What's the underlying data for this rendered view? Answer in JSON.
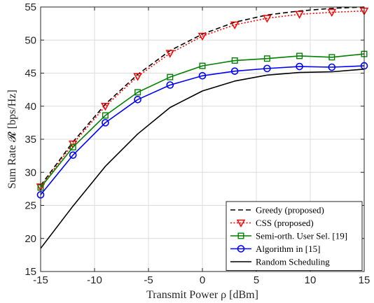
{
  "chart_data": {
    "type": "line",
    "xlabel": "Transmit Power ρ [dBm]",
    "ylabel": "Sum Rate 𝓡 [bps/Hz]",
    "xlim": [
      -15,
      15
    ],
    "ylim": [
      15,
      55
    ],
    "xticks": [
      -15,
      -10,
      -5,
      0,
      5,
      10,
      15
    ],
    "yticks": [
      15,
      20,
      25,
      30,
      35,
      40,
      45,
      50,
      55
    ],
    "xtick_labels": [
      "-15",
      "-10",
      "-5",
      "0",
      "5",
      "10",
      "15"
    ],
    "ytick_labels": [
      "15",
      "20",
      "25",
      "30",
      "35",
      "40",
      "45",
      "50",
      "55"
    ],
    "grid": true,
    "legend_position": "bottom-right",
    "series": [
      {
        "name": "Greedy (proposed)",
        "color": "#000000",
        "style": "dashed",
        "marker": "none",
        "x": [
          -15,
          -12,
          -9,
          -6,
          -3,
          0,
          3,
          6,
          9,
          12,
          15
        ],
        "y": [
          28.0,
          34.6,
          40.3,
          44.8,
          48.4,
          50.9,
          52.7,
          53.8,
          54.4,
          54.8,
          55.0
        ]
      },
      {
        "name": "CSS (proposed)",
        "color": "#ff0000",
        "style": "dotted",
        "marker": "triangle-down",
        "x": [
          -15,
          -12,
          -9,
          -6,
          -3,
          0,
          3,
          6,
          9,
          12,
          15
        ],
        "y": [
          27.8,
          34.3,
          40.0,
          44.5,
          48.0,
          50.6,
          52.3,
          53.3,
          53.9,
          54.2,
          54.4
        ]
      },
      {
        "name": "Semi-orth. User Sel. [19]",
        "color": "#008000",
        "style": "solid",
        "marker": "square",
        "x": [
          -15,
          -12,
          -9,
          -6,
          -3,
          0,
          3,
          6,
          9,
          12,
          15
        ],
        "y": [
          27.7,
          33.8,
          38.6,
          42.1,
          44.4,
          46.1,
          46.9,
          47.2,
          47.6,
          47.4,
          47.9
        ]
      },
      {
        "name": "Algorithm in [15]",
        "color": "#0000ff",
        "style": "solid",
        "marker": "circle",
        "x": [
          -15,
          -12,
          -9,
          -6,
          -3,
          0,
          3,
          6,
          9,
          12,
          15
        ],
        "y": [
          26.6,
          32.6,
          37.5,
          41.0,
          43.2,
          44.6,
          45.3,
          45.7,
          46.0,
          45.9,
          46.1
        ]
      },
      {
        "name": "Random Scheduling",
        "color": "#000000",
        "style": "solid",
        "marker": "none",
        "x": [
          -15,
          -12,
          -9,
          -6,
          -3,
          0,
          3,
          6,
          9,
          12,
          15
        ],
        "y": [
          18.5,
          24.9,
          30.9,
          35.8,
          39.8,
          42.3,
          43.8,
          44.7,
          45.1,
          45.2,
          45.6
        ]
      }
    ]
  }
}
